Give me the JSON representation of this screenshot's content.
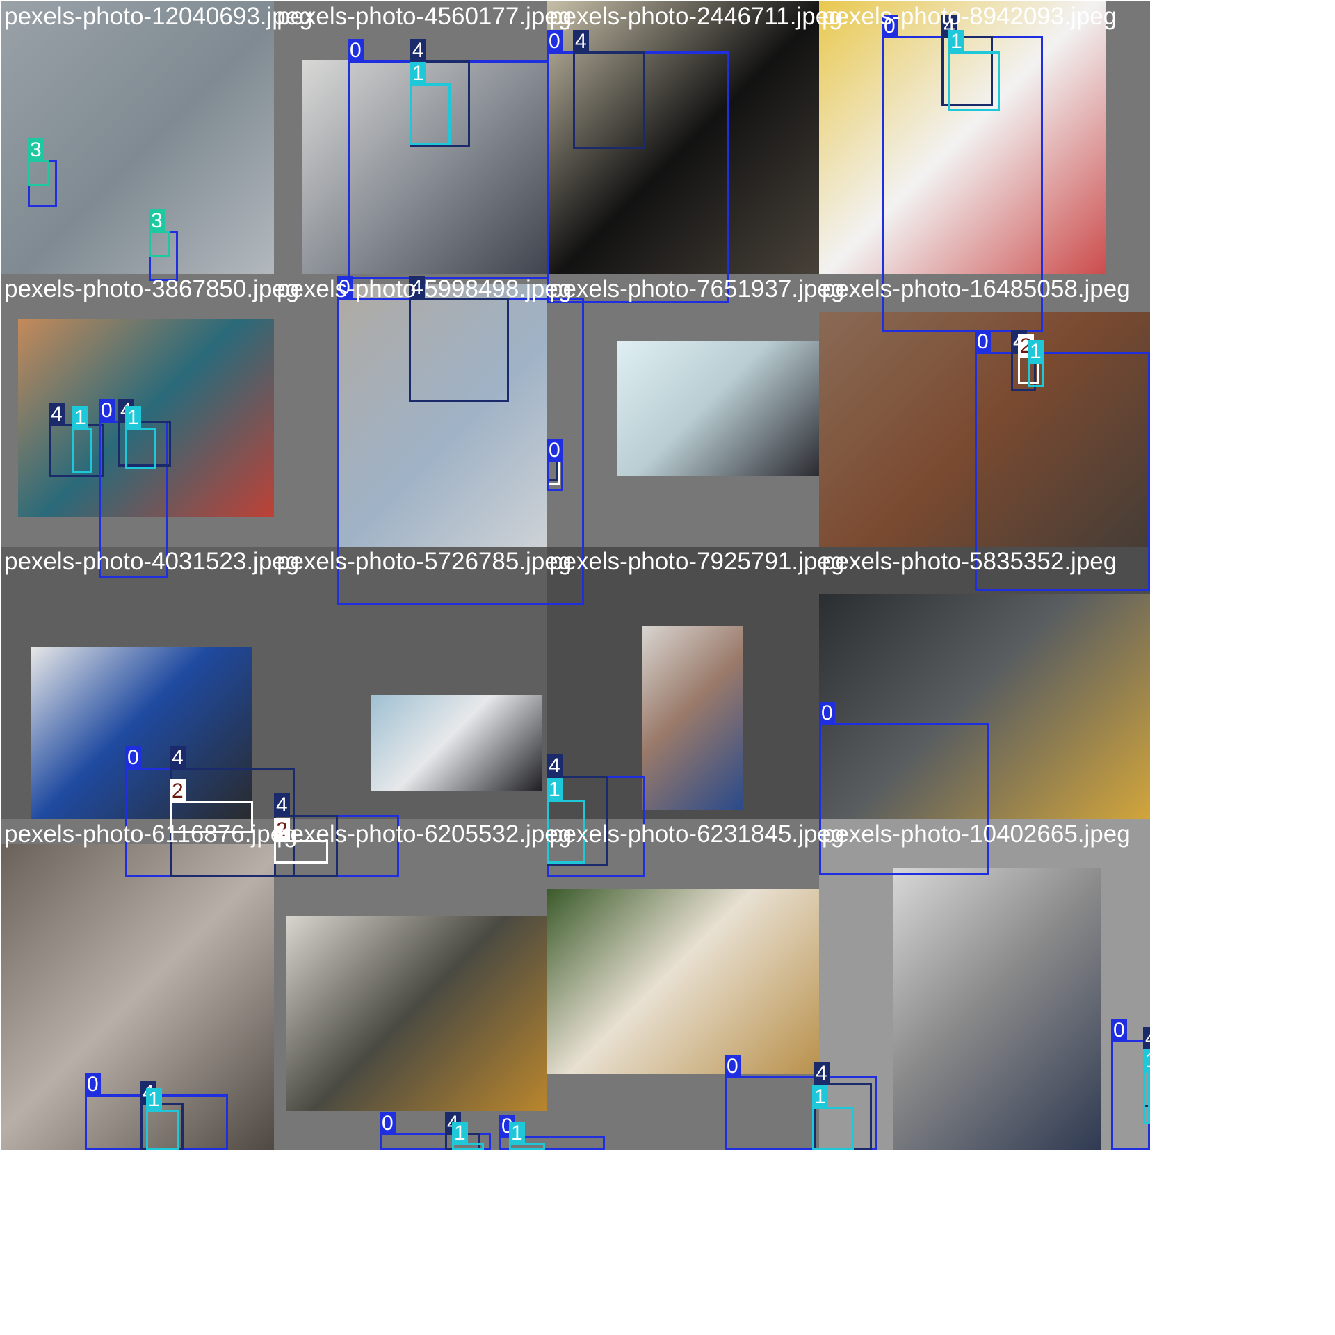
{
  "classes": {
    "0": {
      "color": "#1f2fe0",
      "label_color": "#ffffff"
    },
    "1": {
      "color": "#1ec8d8",
      "label_color": "#ffffff"
    },
    "2": {
      "color": "#ffffff",
      "label_color": "#6b1a10"
    },
    "3": {
      "color": "#1ec8a0",
      "label_color": "#ffffff"
    },
    "4": {
      "color": "#1a2a6a",
      "label_color": "#ffffff"
    }
  },
  "tiles": [
    {
      "title": "pexels-photo-12040693.jpeg",
      "bg": "#777777",
      "photo_colors": [
        "#9aa2a8",
        "#c8ccd0",
        "#7f8a92"
      ],
      "boxes": [
        {
          "cls": "0",
          "label": "0"
        },
        {
          "cls": "3",
          "label": "3"
        },
        {
          "cls": "0",
          "label": "0"
        },
        {
          "cls": "3",
          "label": "3"
        }
      ]
    },
    {
      "title": "pexels-photo-4560177.jpeg",
      "bg": "#777777",
      "photo_colors": [
        "#d8d8d6",
        "#2b2f3a",
        "#8a8f96"
      ],
      "boxes": [
        {
          "cls": "0",
          "label": "0"
        },
        {
          "cls": "4",
          "label": "4"
        },
        {
          "cls": "1",
          "label": "1"
        }
      ]
    },
    {
      "title": "pexels-photo-2446711.jpeg",
      "bg": "#777777",
      "photo_colors": [
        "#c7bfa8",
        "#5a5146",
        "#121212"
      ],
      "boxes": [
        {
          "cls": "0",
          "label": "0"
        },
        {
          "cls": "4",
          "label": "4"
        }
      ]
    },
    {
      "title": "pexels-photo-8942093.jpeg",
      "bg": "#777777",
      "photo_colors": [
        "#e9c84e",
        "#c42a2a",
        "#f2f2f2"
      ],
      "boxes": [
        {
          "cls": "0",
          "label": "0"
        },
        {
          "cls": "4",
          "label": "4"
        },
        {
          "cls": "1",
          "label": "1"
        }
      ]
    },
    {
      "title": "pexels-photo-3867850.jpeg",
      "bg": "#777777",
      "photo_colors": [
        "#c58a5a",
        "#d83a2a",
        "#2a6a7a"
      ],
      "boxes": [
        {
          "cls": "4",
          "label": "4"
        },
        {
          "cls": "1",
          "label": "1"
        },
        {
          "cls": "0",
          "label": "0"
        },
        {
          "cls": "4",
          "label": "4"
        },
        {
          "cls": "1",
          "label": "1"
        }
      ]
    },
    {
      "title": "pexels-photo-5998498.jpeg",
      "bg": "#777777",
      "photo_colors": [
        "#b0aaa2",
        "#e6e3de",
        "#9fb2c6"
      ],
      "boxes": [
        {
          "cls": "0",
          "label": "0"
        },
        {
          "cls": "4",
          "label": "4"
        }
      ]
    },
    {
      "title": "pexels-photo-7651937.jpeg",
      "bg": "#777777",
      "photo_colors": [
        "#dfeff3",
        "#2a2a30",
        "#b9cdd2"
      ],
      "boxes": [
        {
          "cls": "0",
          "label": "0"
        },
        {
          "cls": "0",
          "label": "0"
        },
        {
          "cls": "2",
          "label": "2"
        },
        {
          "cls": "4",
          "label": "4"
        },
        {
          "cls": "0",
          "label": "0"
        }
      ]
    },
    {
      "title": "pexels-photo-16485058.jpeg",
      "bg": "#777777",
      "photo_colors": [
        "#8a6a55",
        "#3a3a38",
        "#7a4a30"
      ],
      "boxes": [
        {
          "cls": "0",
          "label": "0"
        },
        {
          "cls": "4",
          "label": "4"
        },
        {
          "cls": "2",
          "label": "2"
        },
        {
          "cls": "1",
          "label": "1"
        }
      ]
    },
    {
      "title": "pexels-photo-4031523.jpeg",
      "bg": "#5f5f5f",
      "photo_colors": [
        "#e7e7e7",
        "#2a2a2a",
        "#1f4aa0"
      ],
      "boxes": [
        {
          "cls": "0",
          "label": "0"
        },
        {
          "cls": "4",
          "label": "4"
        },
        {
          "cls": "2",
          "label": "2"
        }
      ]
    },
    {
      "title": "pexels-photo-5726785.jpeg",
      "bg": "#5f5f5f",
      "photo_colors": [
        "#9fc0d2",
        "#1e1e22",
        "#e6e8ea"
      ],
      "boxes": [
        {
          "cls": "0",
          "label": "0"
        },
        {
          "cls": "4",
          "label": "4"
        },
        {
          "cls": "2",
          "label": "2"
        }
      ]
    },
    {
      "title": "pexels-photo-7925791.jpeg",
      "bg": "#4d4d4d",
      "photo_colors": [
        "#d8d4d0",
        "#2a4a8a",
        "#9a7a6a"
      ],
      "boxes": [
        {
          "cls": "0",
          "label": "0"
        },
        {
          "cls": "4",
          "label": "4"
        },
        {
          "cls": "1",
          "label": "1"
        }
      ]
    },
    {
      "title": "pexels-photo-5835352.jpeg",
      "bg": "#4d4d4d",
      "photo_colors": [
        "#2a2e30",
        "#d7a83a",
        "#5a5e60"
      ],
      "boxes": [
        {
          "cls": "0",
          "label": "0"
        }
      ]
    },
    {
      "title": "pexels-photo-6116876.jpeg",
      "bg": "#777777",
      "photo_colors": [
        "#6a625a",
        "#3a342e",
        "#b8b0a8"
      ],
      "boxes": [
        {
          "cls": "0",
          "label": "0"
        },
        {
          "cls": "4",
          "label": "4"
        },
        {
          "cls": "1",
          "label": "1"
        }
      ]
    },
    {
      "title": "pexels-photo-6205532.jpeg",
      "bg": "#777777",
      "photo_colors": [
        "#d8d5cf",
        "#c98e2a",
        "#4a4a42"
      ],
      "boxes": [
        {
          "cls": "0",
          "label": "0"
        },
        {
          "cls": "4",
          "label": "4"
        },
        {
          "cls": "1",
          "label": "1"
        },
        {
          "cls": "0",
          "label": "0"
        },
        {
          "cls": "1",
          "label": "1"
        }
      ]
    },
    {
      "title": "pexels-photo-6231845.jpeg",
      "bg": "#777777",
      "photo_colors": [
        "#3a5a2a",
        "#b8904a",
        "#e8e0d2"
      ],
      "boxes": [
        {
          "cls": "0",
          "label": "0"
        },
        {
          "cls": "4",
          "label": "4"
        },
        {
          "cls": "1",
          "label": "1"
        }
      ]
    },
    {
      "title": "pexels-photo-10402665.jpeg",
      "bg": "#9a9a9a",
      "photo_colors": [
        "#d8d8d8",
        "#2f3a52",
        "#8a8a8a"
      ],
      "boxes": [
        {
          "cls": "0",
          "label": "0"
        },
        {
          "cls": "4",
          "label": "4"
        },
        {
          "cls": "1",
          "label": "1"
        }
      ]
    }
  ]
}
